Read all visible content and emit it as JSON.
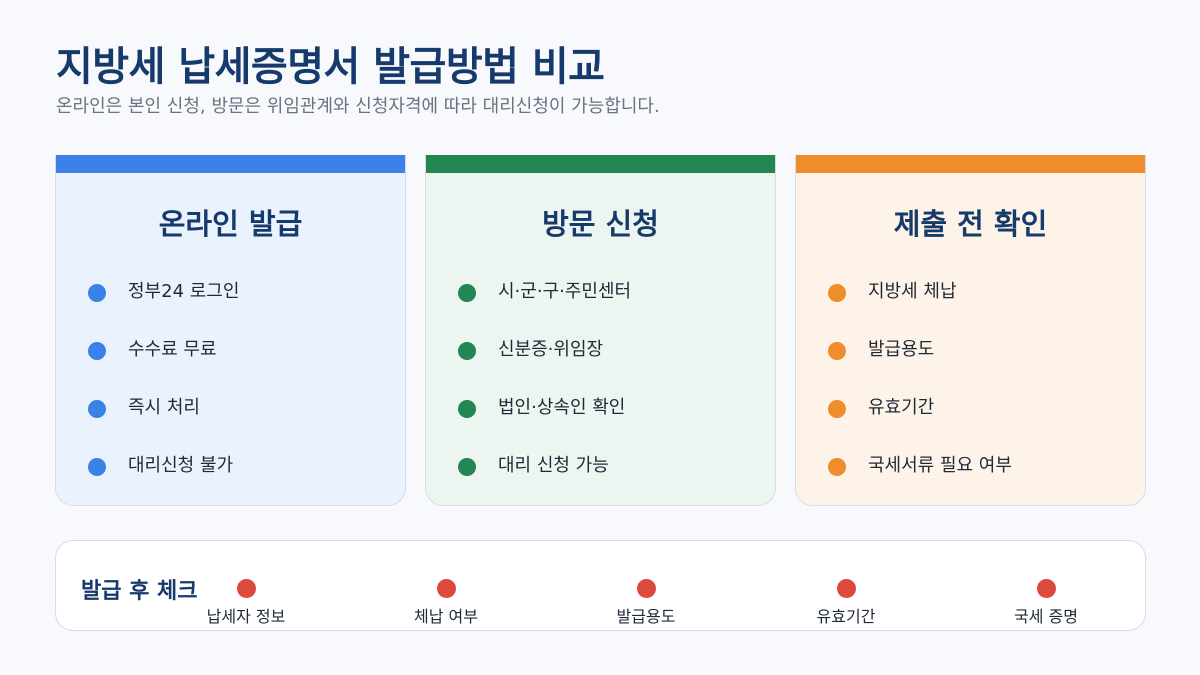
{
  "header": {
    "title": "지방세 납세증명서 발급방법 비교",
    "subtitle": "온라인은 본인 신청, 방문은 위임관계와 신청자격에 따라 대리신청이 가능합니다."
  },
  "cards": [
    {
      "title": "온라인 발급",
      "color": "#3a82e8",
      "items": [
        "정부24 로그인",
        "수수료 무료",
        "즉시 처리",
        "대리신청 불가"
      ]
    },
    {
      "title": "방문 신청",
      "color": "#228653",
      "items": [
        "시·군·구·주민센터",
        "신분증·위임장",
        "법인·상속인 확인",
        "대리 신청 가능"
      ]
    },
    {
      "title": "제출 전 확인",
      "color": "#f08c2b",
      "items": [
        "지방세 체납",
        "발급용도",
        "유효기간",
        "국세서류 필요 여부"
      ]
    }
  ],
  "after_check": {
    "title": "발급 후 체크",
    "color": "#dc4a3d",
    "steps": [
      "납세자 정보",
      "체납 여부",
      "발급용도",
      "유효기간",
      "국세 증명"
    ]
  }
}
